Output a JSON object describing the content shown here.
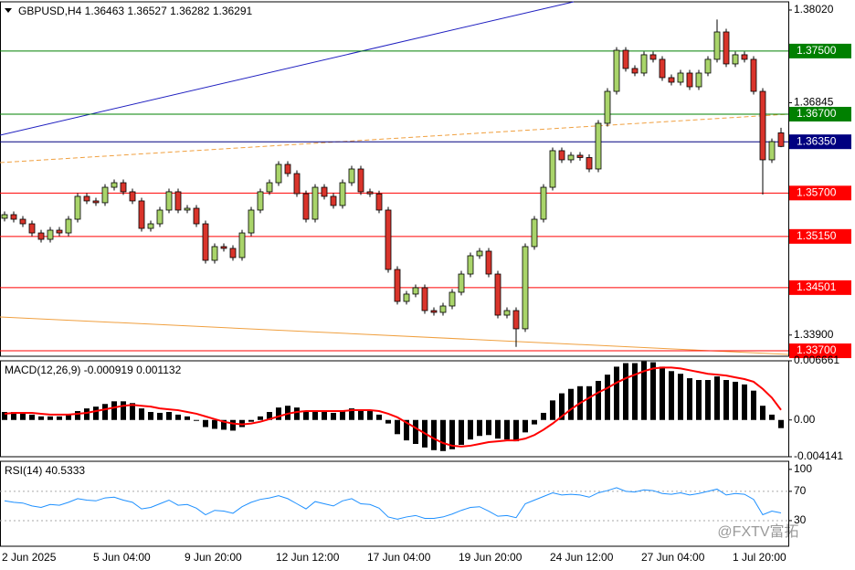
{
  "chart_data": [
    {
      "type": "candlestick",
      "title": "GBPUSD,H4  1.36463 1.36527 1.36282 1.36291",
      "categories": [
        "2 Jun 2025",
        null,
        null,
        null,
        null,
        null,
        null,
        null,
        null,
        null,
        "5 Jun 04:00",
        null,
        null,
        null,
        null,
        null,
        null,
        null,
        null,
        null,
        "9 Jun 20:00",
        null,
        null,
        null,
        null,
        null,
        null,
        null,
        null,
        null,
        "12 Jun 12:00",
        null,
        null,
        null,
        null,
        null,
        null,
        null,
        null,
        null,
        "17 Jun 04:00",
        null,
        null,
        null,
        null,
        null,
        null,
        null,
        null,
        null,
        "19 Jun 20:00",
        null,
        null,
        null,
        null,
        null,
        null,
        null,
        null,
        null,
        "24 Jun 12:00",
        null,
        null,
        null,
        null,
        null,
        null,
        null,
        null,
        null,
        "27 Jun 04:00",
        null,
        null,
        null,
        null,
        null,
        null,
        null,
        null,
        null,
        "1 Jul 20:00",
        null,
        null,
        null,
        null,
        null
      ],
      "open": [
        1.3538,
        1.35426,
        1.35368,
        1.3531,
        1.35194,
        1.35113,
        1.35229,
        1.35194,
        1.35368,
        1.35658,
        1.356,
        1.35577,
        1.35773,
        1.35831,
        1.35716,
        1.356,
        1.35252,
        1.3531,
        1.35484,
        1.35716,
        1.35484,
        1.35507,
        1.3531,
        1.34847,
        1.35021,
        1.34998,
        1.34882,
        1.35194,
        1.35484,
        1.35716,
        1.35831,
        1.36063,
        1.35947,
        1.35692,
        1.35368,
        1.35773,
        1.35658,
        1.35542,
        1.35831,
        1.36005,
        1.35716,
        1.3569,
        1.35484,
        1.34731,
        1.34326,
        1.34419,
        1.345,
        1.3421,
        1.34187,
        1.34268,
        1.34442,
        1.34673,
        1.34905,
        1.34963,
        1.34673,
        1.34152,
        1.3421,
        1.33979,
        1.35021,
        1.35368,
        1.35773,
        1.36237,
        1.36121,
        1.36179,
        1.3615,
        1.36005,
        1.36584,
        1.36989,
        1.3751,
        1.37279,
        1.37221,
        1.37453,
        1.37395,
        1.37163,
        1.37105,
        1.37221,
        1.37047,
        1.37221,
        1.37395,
        1.37742,
        1.37337,
        1.37453,
        1.37395,
        1.36989,
        1.36121,
        1.36463
      ],
      "high": [
        1.35466,
        1.35466,
        1.35408,
        1.3535,
        1.35234,
        1.35269,
        1.35269,
        1.35408,
        1.35698,
        1.35698,
        1.3564,
        1.35813,
        1.35871,
        1.35871,
        1.35756,
        1.3564,
        1.3535,
        1.35524,
        1.35756,
        1.35756,
        1.35547,
        1.35547,
        1.3535,
        1.35061,
        1.35061,
        1.35038,
        1.35234,
        1.35524,
        1.35756,
        1.35871,
        1.36103,
        1.36103,
        1.35987,
        1.35732,
        1.35813,
        1.35813,
        1.35698,
        1.35871,
        1.36045,
        1.36045,
        1.35756,
        1.3573,
        1.35524,
        1.34771,
        1.34459,
        1.3454,
        1.3454,
        1.3425,
        1.34308,
        1.34482,
        1.34713,
        1.34945,
        1.35003,
        1.35003,
        1.34713,
        1.3425,
        1.3425,
        1.35061,
        1.35408,
        1.35813,
        1.36277,
        1.36277,
        1.36219,
        1.36219,
        1.3619,
        1.36624,
        1.37029,
        1.3755,
        1.3755,
        1.37319,
        1.37493,
        1.37493,
        1.37435,
        1.37203,
        1.37261,
        1.37261,
        1.37261,
        1.37435,
        1.379,
        1.37782,
        1.37493,
        1.37493,
        1.37435,
        1.37029,
        1.36392,
        1.36527
      ],
      "low": [
        1.3534,
        1.35328,
        1.3527,
        1.35154,
        1.35073,
        1.35073,
        1.35154,
        1.35154,
        1.35328,
        1.3556,
        1.35537,
        1.35537,
        1.35733,
        1.35676,
        1.3556,
        1.35212,
        1.35212,
        1.3527,
        1.35444,
        1.35444,
        1.35444,
        1.3527,
        1.34807,
        1.34807,
        1.34958,
        1.34842,
        1.34842,
        1.35154,
        1.35444,
        1.35676,
        1.35791,
        1.35907,
        1.35652,
        1.35328,
        1.35328,
        1.35618,
        1.35502,
        1.35502,
        1.35791,
        1.35676,
        1.3565,
        1.35444,
        1.34691,
        1.34286,
        1.34286,
        1.34379,
        1.3417,
        1.34147,
        1.34147,
        1.34228,
        1.34402,
        1.34633,
        1.34865,
        1.34633,
        1.34112,
        1.34112,
        1.3375,
        1.33939,
        1.34981,
        1.35328,
        1.35733,
        1.36081,
        1.36081,
        1.3611,
        1.35965,
        1.35965,
        1.36544,
        1.36949,
        1.37239,
        1.37181,
        1.37181,
        1.37355,
        1.37123,
        1.37065,
        1.37065,
        1.37007,
        1.37007,
        1.37181,
        1.37355,
        1.37297,
        1.37297,
        1.37355,
        1.36949,
        1.3568,
        1.36081,
        1.36282
      ],
      "close": [
        1.35426,
        1.35368,
        1.3531,
        1.35194,
        1.35113,
        1.35229,
        1.35194,
        1.35368,
        1.35658,
        1.356,
        1.35577,
        1.35773,
        1.35831,
        1.35716,
        1.356,
        1.35252,
        1.3531,
        1.35484,
        1.35716,
        1.35484,
        1.35507,
        1.3531,
        1.34847,
        1.35021,
        1.34998,
        1.34882,
        1.35194,
        1.35484,
        1.35716,
        1.35831,
        1.36063,
        1.35947,
        1.35692,
        1.35368,
        1.35773,
        1.35658,
        1.35542,
        1.35831,
        1.36005,
        1.35716,
        1.3569,
        1.35484,
        1.34731,
        1.34326,
        1.34419,
        1.345,
        1.3421,
        1.34187,
        1.34268,
        1.34442,
        1.34673,
        1.34905,
        1.34963,
        1.34673,
        1.34152,
        1.3421,
        1.33979,
        1.35021,
        1.35368,
        1.35773,
        1.36237,
        1.36121,
        1.36179,
        1.3615,
        1.36005,
        1.36584,
        1.36989,
        1.3751,
        1.37279,
        1.37221,
        1.37453,
        1.37395,
        1.37163,
        1.37105,
        1.37221,
        1.37047,
        1.37221,
        1.37395,
        1.37742,
        1.37337,
        1.37453,
        1.37395,
        1.36989,
        1.36121,
        1.36352,
        1.36291
      ],
      "up_color": "#a9d46a",
      "down_color": "#d9342b",
      "ylim": [
        1.33631,
        1.38124
      ],
      "yticks": [
        {
          "value": 1.3802,
          "label": "1.38020"
        },
        1.36845,
        {
          "value": 1.339,
          "label": "1.33900"
        }
      ],
      "levels": [
        {
          "value": 1.375,
          "label": "1.37500",
          "color": "#008000"
        },
        {
          "value": 1.367,
          "label": "1.36700",
          "color": "#008000"
        },
        {
          "value": 1.3635,
          "label": "1.36350",
          "color": "#000080"
        },
        {
          "value": 1.357,
          "label": "1.35700",
          "color": "#ff0000"
        },
        {
          "value": 1.3515,
          "label": "1.35150",
          "color": "#ff0000"
        },
        {
          "value": 1.34501,
          "label": "1.34501",
          "color": "#ff0000"
        },
        {
          "value": 1.337,
          "label": "1.33700",
          "color": "#ff0000"
        }
      ],
      "trendlines": [
        {
          "color": "#2020c0",
          "dash": false,
          "from": [
            -0.5,
            1.36433
          ],
          "to": [
            62.3,
            1.38124
          ]
        },
        {
          "color": "#f0a040",
          "dash": true,
          "from": [
            -0.5,
            1.36086
          ],
          "to": [
            85.8,
            1.367
          ]
        },
        {
          "color": "#f0a040",
          "dash": false,
          "from": [
            -0.5,
            1.34129
          ],
          "to": [
            85.8,
            1.33654
          ]
        }
      ]
    },
    {
      "type": "macd",
      "title": "MACD(12,26,9) -0.000919 0.001132",
      "series": [
        {
          "color": "#000000",
          "values": [
            0.0009,
            0.0009,
            0.0008,
            0.0006,
            0.0004,
            0.0004,
            0.0004,
            0.0006,
            0.001,
            0.0013,
            0.0015,
            0.0018,
            0.0021,
            0.0021,
            0.0019,
            0.0013,
            0.0009,
            0.0008,
            0.0009,
            0.0006,
            0.0004,
            -0.0001,
            -0.0008,
            -0.001,
            -0.0011,
            -0.0012,
            -0.0008,
            -0.0002,
            0.0004,
            0.0009,
            0.0014,
            0.0016,
            0.0014,
            0.0009,
            0.001,
            0.001,
            0.0008,
            0.001,
            0.0013,
            0.0012,
            0.001,
            0.0006,
            -0.0004,
            -0.0016,
            -0.0023,
            -0.0027,
            -0.0031,
            -0.0034,
            -0.0035,
            -0.0033,
            -0.0028,
            -0.0022,
            -0.0018,
            -0.0017,
            -0.0021,
            -0.0022,
            -0.0024,
            -0.0014,
            -0.0005,
            0.0008,
            0.0022,
            0.003,
            0.0035,
            0.0038,
            0.0038,
            0.0044,
            0.0051,
            0.006,
            0.0064,
            0.0064,
            0.0066,
            0.0065,
            0.006,
            0.0055,
            0.0052,
            0.0047,
            0.0045,
            0.0045,
            0.0049,
            0.0045,
            0.0043,
            0.004,
            0.0033,
            0.0016,
            0.0006,
            -0.000919
          ]
        },
        {
          "color": "#ff0000",
          "values": [
            0.0007,
            0.0008,
            0.0008,
            0.0008,
            0.0007,
            0.0006,
            0.0006,
            0.0006,
            0.0007,
            0.0008,
            0.001,
            0.0012,
            0.0014,
            0.0016,
            0.0017,
            0.0016,
            0.0015,
            0.0013,
            0.0012,
            0.0011,
            0.0009,
            0.0007,
            0.0004,
            0.0001,
            -0.0002,
            -0.0004,
            -0.0005,
            -0.0004,
            -0.0002,
            0.0001,
            0.0004,
            0.0007,
            0.0009,
            0.001,
            0.001,
            0.001,
            0.001,
            0.001,
            0.0011,
            0.0011,
            0.0011,
            0.001,
            0.0007,
            0.0003,
            -0.0003,
            -0.0009,
            -0.0015,
            -0.0021,
            -0.0026,
            -0.0029,
            -0.003,
            -0.0029,
            -0.0027,
            -0.0025,
            -0.0024,
            -0.0023,
            -0.0023,
            -0.0021,
            -0.0017,
            -0.0011,
            -0.0004,
            0.0004,
            0.0012,
            0.0019,
            0.0025,
            0.0031,
            0.0036,
            0.0042,
            0.0047,
            0.0051,
            0.0055,
            0.0058,
            0.0059,
            0.0059,
            0.0058,
            0.0056,
            0.0054,
            0.0052,
            0.0051,
            0.005,
            0.0048,
            0.0046,
            0.0043,
            0.0035,
            0.0025,
            0.001132
          ]
        }
      ],
      "ylim": [
        -0.004141,
        0.006661
      ],
      "yticks": [
        0.006661,
        {
          "value": 0,
          "label": "0.00"
        },
        -0.004141
      ]
    },
    {
      "type": "rsi",
      "title": "RSI(14) 40.5333",
      "series": [
        {
          "color": "#1e90ff",
          "values": [
            57,
            55,
            54,
            50,
            48,
            52,
            51,
            55,
            60,
            58,
            57,
            61,
            62,
            58,
            55,
            46,
            48,
            53,
            58,
            51,
            52,
            47,
            38,
            44,
            43,
            40,
            49,
            55,
            59,
            61,
            64,
            60,
            53,
            46,
            56,
            53,
            50,
            57,
            60,
            53,
            52,
            47,
            35,
            32,
            35,
            37,
            33,
            33,
            35,
            39,
            44,
            48,
            49,
            43,
            36,
            37,
            34,
            53,
            58,
            63,
            68,
            65,
            66,
            65,
            62,
            68,
            71,
            75,
            70,
            69,
            72,
            71,
            67,
            66,
            68,
            65,
            67,
            70,
            73,
            65,
            67,
            66,
            59,
            38,
            43,
            40.5333
          ]
        }
      ],
      "ylim": [
        -5,
        111
      ],
      "yticks": [
        100,
        70,
        30
      ],
      "levels": [
        70,
        30
      ]
    }
  ],
  "watermark": "@FXTV富拓"
}
